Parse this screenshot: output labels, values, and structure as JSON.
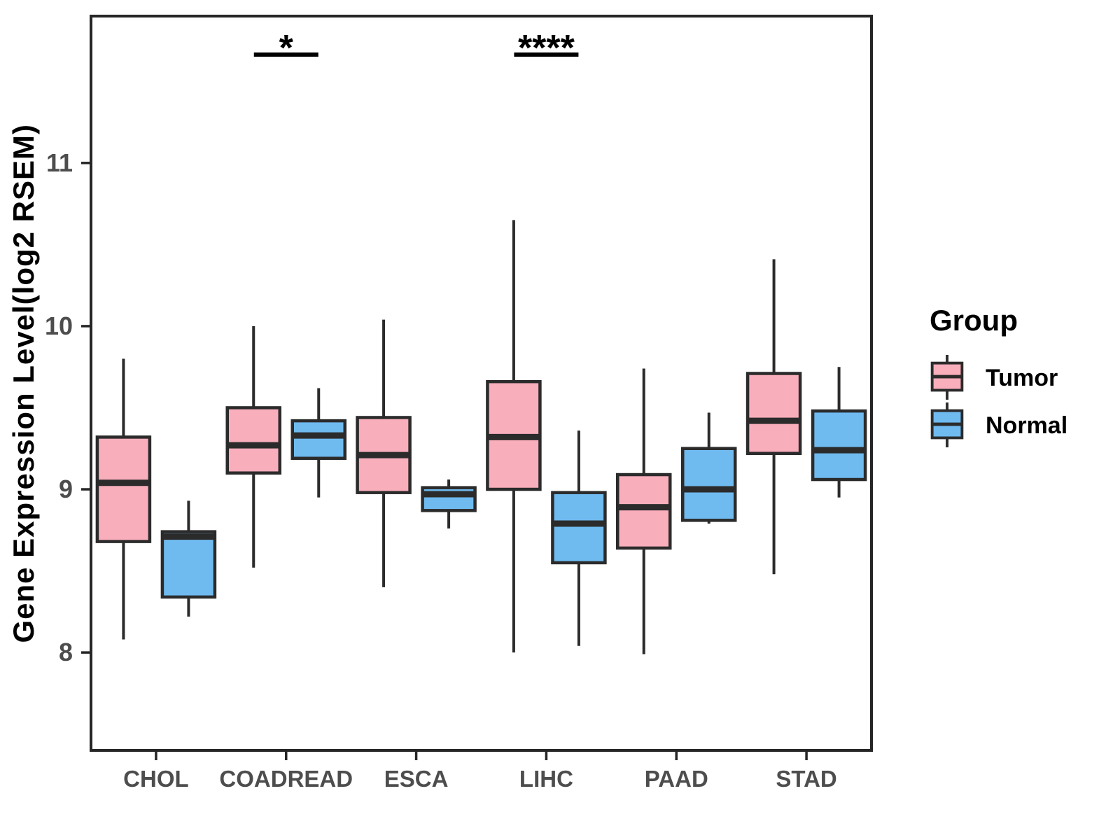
{
  "chart_data": {
    "type": "boxplot-grouped",
    "ylabel": "Gene Expression Level(log2 RSEM)",
    "xlabel": "",
    "categories": [
      "CHOL",
      "COADREAD",
      "ESCA",
      "LIHC",
      "PAAD",
      "STAD"
    ],
    "yticks": [
      8,
      9,
      10,
      11
    ],
    "ylim": [
      7.4,
      11.9
    ],
    "grid": false,
    "colors": {
      "axis": "#262626",
      "box_stroke": "#2b2b2b",
      "tick_label": "#4d4d4d",
      "tumor": "#F9AEBC",
      "normal": "#6FBBF0"
    },
    "legend": {
      "title": "Group",
      "position": "right",
      "entries": [
        {
          "name": "Tumor",
          "color": "#F9AEBC"
        },
        {
          "name": "Normal",
          "color": "#6FBBF0"
        }
      ]
    },
    "series": [
      {
        "name": "Tumor",
        "color": "#F9AEBC",
        "boxes": [
          {
            "category": "CHOL",
            "low": 8.08,
            "q1": 8.68,
            "median": 9.04,
            "q3": 9.32,
            "high": 9.8
          },
          {
            "category": "COADREAD",
            "low": 8.52,
            "q1": 9.1,
            "median": 9.27,
            "q3": 9.5,
            "high": 10.0
          },
          {
            "category": "ESCA",
            "low": 8.4,
            "q1": 8.98,
            "median": 9.21,
            "q3": 9.44,
            "high": 10.04
          },
          {
            "category": "LIHC",
            "low": 8.0,
            "q1": 9.0,
            "median": 9.32,
            "q3": 9.66,
            "high": 10.65
          },
          {
            "category": "PAAD",
            "low": 7.99,
            "q1": 8.64,
            "median": 8.89,
            "q3": 9.09,
            "high": 9.74
          },
          {
            "category": "STAD",
            "low": 8.48,
            "q1": 9.22,
            "median": 9.42,
            "q3": 9.71,
            "high": 10.41
          }
        ]
      },
      {
        "name": "Normal",
        "color": "#6FBBF0",
        "boxes": [
          {
            "category": "CHOL",
            "low": 8.22,
            "q1": 8.34,
            "median": 8.71,
            "q3": 8.74,
            "high": 8.93
          },
          {
            "category": "COADREAD",
            "low": 8.95,
            "q1": 9.19,
            "median": 9.33,
            "q3": 9.42,
            "high": 9.62
          },
          {
            "category": "ESCA",
            "low": 8.76,
            "q1": 8.87,
            "median": 8.97,
            "q3": 9.01,
            "high": 9.06
          },
          {
            "category": "LIHC",
            "low": 8.04,
            "q1": 8.55,
            "median": 8.79,
            "q3": 8.98,
            "high": 9.36
          },
          {
            "category": "PAAD",
            "low": 8.79,
            "q1": 8.81,
            "median": 9.0,
            "q3": 9.25,
            "high": 9.47
          },
          {
            "category": "STAD",
            "low": 8.95,
            "q1": 9.06,
            "median": 9.24,
            "q3": 9.48,
            "high": 9.75
          }
        ]
      }
    ],
    "significance": [
      {
        "category": "COADREAD",
        "label": "*"
      },
      {
        "category": "LIHC",
        "label": "****"
      }
    ]
  }
}
